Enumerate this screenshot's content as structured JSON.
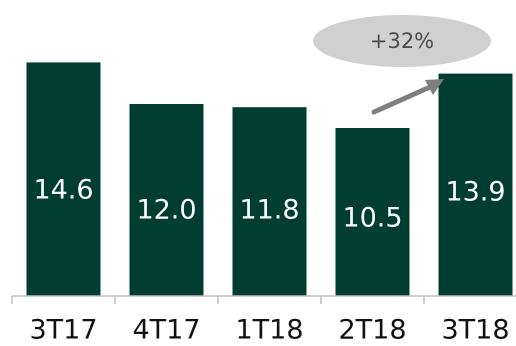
{
  "colors": {
    "bar": "#023d32",
    "axis": "#bfbfbf",
    "bubble": "#d0d0d0",
    "arrow": "#7f7f7f"
  },
  "chart_data": {
    "type": "bar",
    "categories": [
      "3T17",
      "4T17",
      "1T18",
      "2T18",
      "3T18"
    ],
    "values": [
      14.6,
      12.0,
      11.8,
      10.5,
      13.9
    ],
    "value_labels": [
      "14.6",
      "12.0",
      "11.8",
      "10.5",
      "13.9"
    ],
    "title": "",
    "xlabel": "",
    "ylabel": "",
    "ylim": [
      0,
      16
    ],
    "grid": false,
    "annotation": {
      "text": "+32%",
      "shape": "ellipse",
      "arrow": "up-right"
    }
  }
}
